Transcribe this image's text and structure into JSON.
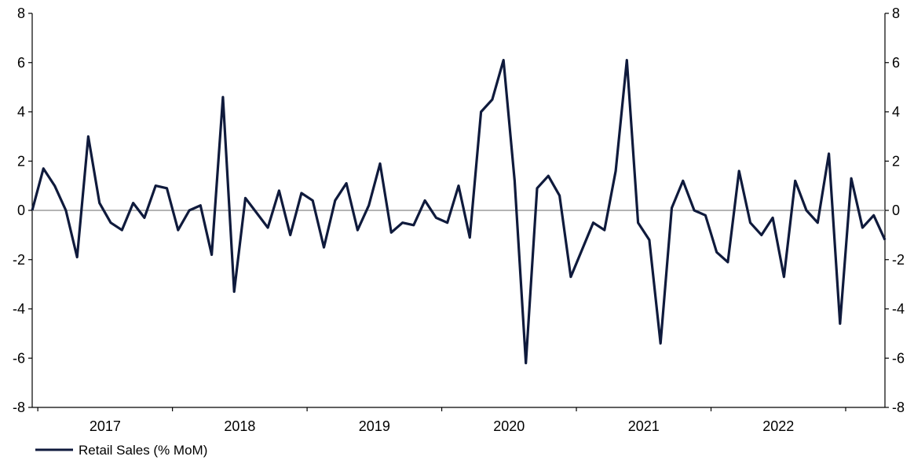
{
  "chart_data": {
    "type": "line",
    "x_unit": "month",
    "start": "2016-12",
    "y_ticks": [
      8,
      6,
      4,
      2,
      0,
      -2,
      -4,
      -6,
      -8
    ],
    "ylim": [
      -8,
      8
    ],
    "x_tick_labels": [
      "2017",
      "2018",
      "2019",
      "2020",
      "2021",
      "2022"
    ],
    "grid": false,
    "zero_line": true,
    "legend_position": "bottom-left",
    "colors": {
      "line": "#0f1a3c",
      "zero_line": "#888888",
      "axes": "#000000"
    },
    "series": [
      {
        "name": "Retail Sales (% MoM)",
        "values": [
          0.0,
          1.7,
          1.0,
          0.0,
          -1.9,
          3.0,
          0.3,
          -0.5,
          -0.8,
          0.3,
          -0.3,
          1.0,
          0.9,
          -0.8,
          0.0,
          0.2,
          -1.8,
          4.6,
          -3.3,
          0.5,
          -0.1,
          -0.7,
          0.8,
          -1.0,
          0.7,
          0.4,
          -1.5,
          0.4,
          1.1,
          -0.8,
          0.2,
          1.9,
          -0.9,
          -0.5,
          -0.6,
          0.4,
          -0.3,
          -0.5,
          1.0,
          -1.1,
          4.0,
          4.5,
          6.1,
          1.2,
          -6.2,
          0.9,
          1.4,
          0.6,
          -2.7,
          -1.6,
          -0.5,
          -0.8,
          1.6,
          6.1,
          -0.5,
          -1.2,
          -5.4,
          0.1,
          1.2,
          0.0,
          -0.2,
          -1.7,
          -2.1,
          1.6,
          -0.5,
          -1.0,
          -0.3,
          -2.7,
          1.2,
          0.0,
          -0.5,
          2.3,
          -4.6,
          1.3,
          -0.7,
          -0.2,
          -1.2
        ]
      }
    ]
  }
}
